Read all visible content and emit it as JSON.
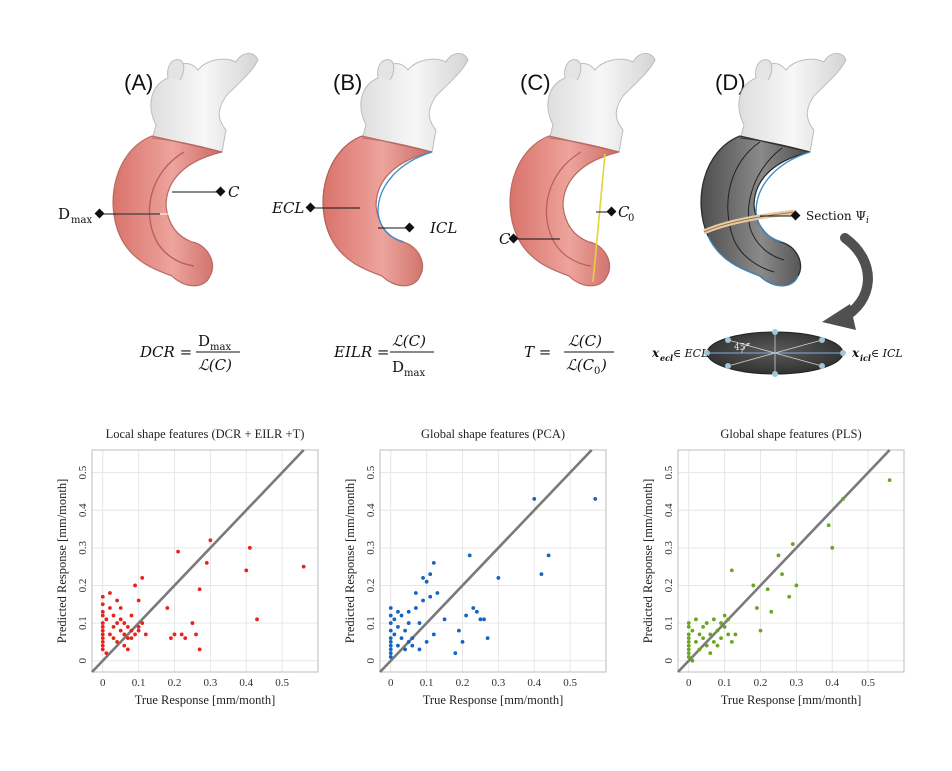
{
  "panels": [
    {
      "letter": "(A)",
      "labels": [
        "D",
        "max",
        "C"
      ],
      "formula": {
        "lhs": "DCR =",
        "num": "D",
        "num_sub": "max",
        "den": "ℒ(C)"
      }
    },
    {
      "letter": "(B)",
      "labels": [
        "ECL",
        "ICL"
      ],
      "formula": {
        "lhs": "EILR =",
        "num": "ℒ(C)",
        "den": "D",
        "den_sub": "max"
      }
    },
    {
      "letter": "(C)",
      "labels": [
        "C",
        "C",
        "0"
      ],
      "formula": {
        "lhs": "T =",
        "num": "ℒ(C)",
        "den": "ℒ(C",
        "den_sub": "0",
        "den_tail": ")"
      }
    },
    {
      "letter": "(D)",
      "labels": [
        "Section Ψ",
        "i"
      ],
      "section_labels": [
        "x",
        "ecl",
        " ∈ ECL",
        "x",
        "icl",
        " ∈ ICL",
        "45°"
      ]
    }
  ],
  "colors": {
    "aorta_red": "#e8908a",
    "aorta_edge": "#b86a62",
    "aorta_grey": "#6b6b6b",
    "vessel_white": "#ececec",
    "cut_plane": "#e6c9a6"
  },
  "chart_data": [
    {
      "type": "scatter",
      "title": "Local shape features (DCR + EILR +T)",
      "xlabel": "True Response [mm/month]",
      "ylabel": "Predicted Response [mm/month]",
      "xlim": [
        -0.03,
        0.6
      ],
      "ylim": [
        -0.03,
        0.56
      ],
      "xticks": [
        0,
        0.1,
        0.2,
        0.3,
        0.4,
        0.5
      ],
      "yticks": [
        0,
        0.1,
        0.2,
        0.3,
        0.4,
        0.5
      ],
      "color": "#e8231c",
      "grid": true,
      "reference_line": "y=x",
      "x": [
        0,
        0,
        0,
        0,
        0,
        0,
        0,
        0,
        0,
        0,
        0,
        0,
        0.01,
        0.01,
        0.02,
        0.02,
        0.02,
        0.03,
        0.03,
        0.03,
        0.04,
        0.04,
        0.04,
        0.05,
        0.05,
        0.05,
        0.06,
        0.06,
        0.06,
        0.07,
        0.07,
        0.07,
        0.08,
        0.08,
        0.08,
        0.09,
        0.09,
        0.1,
        0.1,
        0.1,
        0.11,
        0.11,
        0.12,
        0.18,
        0.19,
        0.2,
        0.21,
        0.22,
        0.23,
        0.25,
        0.26,
        0.27,
        0.27,
        0.29,
        0.3,
        0.4,
        0.41,
        0.43,
        0.56
      ],
      "y": [
        0.03,
        0.05,
        0.07,
        0.1,
        0.12,
        0.15,
        0.17,
        0.09,
        0.06,
        0.04,
        0.08,
        0.13,
        0.02,
        0.11,
        0.18,
        0.14,
        0.07,
        0.06,
        0.09,
        0.12,
        0.16,
        0.1,
        0.05,
        0.08,
        0.11,
        0.14,
        0.04,
        0.07,
        0.1,
        0.09,
        0.06,
        0.03,
        0.08,
        0.12,
        0.06,
        0.07,
        0.2,
        0.16,
        0.09,
        0.08,
        0.22,
        0.1,
        0.07,
        0.14,
        0.06,
        0.07,
        0.29,
        0.07,
        0.06,
        0.1,
        0.07,
        0.03,
        0.19,
        0.26,
        0.32,
        0.24,
        0.3,
        0.11,
        0.25
      ]
    },
    {
      "type": "scatter",
      "title": "Global shape features (PCA)",
      "xlabel": "True Response [mm/month]",
      "ylabel": "Predicted Response [mm/month]",
      "xlim": [
        -0.03,
        0.6
      ],
      "ylim": [
        -0.03,
        0.56
      ],
      "xticks": [
        0,
        0.1,
        0.2,
        0.3,
        0.4,
        0.5
      ],
      "yticks": [
        0,
        0.1,
        0.2,
        0.3,
        0.4,
        0.5
      ],
      "color": "#1464c0",
      "grid": true,
      "reference_line": "y=x",
      "x": [
        0,
        0,
        0,
        0,
        0,
        0,
        0,
        0,
        0,
        0,
        0.01,
        0.01,
        0.02,
        0.02,
        0.02,
        0.03,
        0.03,
        0.04,
        0.04,
        0.05,
        0.05,
        0.05,
        0.06,
        0.06,
        0.07,
        0.07,
        0.08,
        0.08,
        0.09,
        0.09,
        0.1,
        0.1,
        0.11,
        0.11,
        0.12,
        0.12,
        0.13,
        0.15,
        0.18,
        0.19,
        0.2,
        0.21,
        0.22,
        0.23,
        0.24,
        0.25,
        0.26,
        0.27,
        0.3,
        0.4,
        0.42,
        0.44,
        0.57
      ],
      "y": [
        0.02,
        0.04,
        0.06,
        0.08,
        0.1,
        0.12,
        0.14,
        0.05,
        0.03,
        0.01,
        0.07,
        0.11,
        0.13,
        0.04,
        0.09,
        0.06,
        0.12,
        0.03,
        0.08,
        0.05,
        0.1,
        0.13,
        0.04,
        0.06,
        0.14,
        0.18,
        0.03,
        0.1,
        0.16,
        0.22,
        0.05,
        0.21,
        0.17,
        0.23,
        0.07,
        0.26,
        0.18,
        0.11,
        0.02,
        0.08,
        0.05,
        0.12,
        0.28,
        0.14,
        0.13,
        0.11,
        0.11,
        0.06,
        0.22,
        0.43,
        0.23,
        0.28,
        0.43
      ]
    },
    {
      "type": "scatter",
      "title": "Global shape features (PLS)",
      "xlabel": "True Response [mm/month]",
      "ylabel": "Predicted Response [mm/month]",
      "xlim": [
        -0.03,
        0.6
      ],
      "ylim": [
        -0.03,
        0.56
      ],
      "xticks": [
        0,
        0.1,
        0.2,
        0.3,
        0.4,
        0.5
      ],
      "yticks": [
        0,
        0.1,
        0.2,
        0.3,
        0.4,
        0.5
      ],
      "color": "#6ba620",
      "grid": true,
      "reference_line": "y=x",
      "x": [
        0,
        0,
        0,
        0,
        0,
        0,
        0,
        0,
        0,
        0.01,
        0.01,
        0.02,
        0.02,
        0.03,
        0.03,
        0.04,
        0.04,
        0.05,
        0.05,
        0.06,
        0.06,
        0.07,
        0.07,
        0.08,
        0.08,
        0.09,
        0.09,
        0.1,
        0.1,
        0.11,
        0.11,
        0.12,
        0.12,
        0.13,
        0.18,
        0.19,
        0.2,
        0.22,
        0.23,
        0.25,
        0.26,
        0.28,
        0.29,
        0.3,
        0.39,
        0.4,
        0.43,
        0.56
      ],
      "y": [
        0.01,
        0.03,
        0.05,
        0.07,
        0.09,
        0.02,
        0.04,
        0.1,
        0.06,
        0.08,
        0.0,
        0.11,
        0.05,
        0.07,
        0.03,
        0.06,
        0.09,
        0.04,
        0.1,
        0.07,
        0.02,
        0.05,
        0.11,
        0.08,
        0.04,
        0.1,
        0.06,
        0.12,
        0.09,
        0.07,
        0.11,
        0.24,
        0.05,
        0.07,
        0.2,
        0.14,
        0.08,
        0.19,
        0.13,
        0.28,
        0.23,
        0.17,
        0.31,
        0.2,
        0.36,
        0.3,
        0.43,
        0.48
      ]
    }
  ]
}
